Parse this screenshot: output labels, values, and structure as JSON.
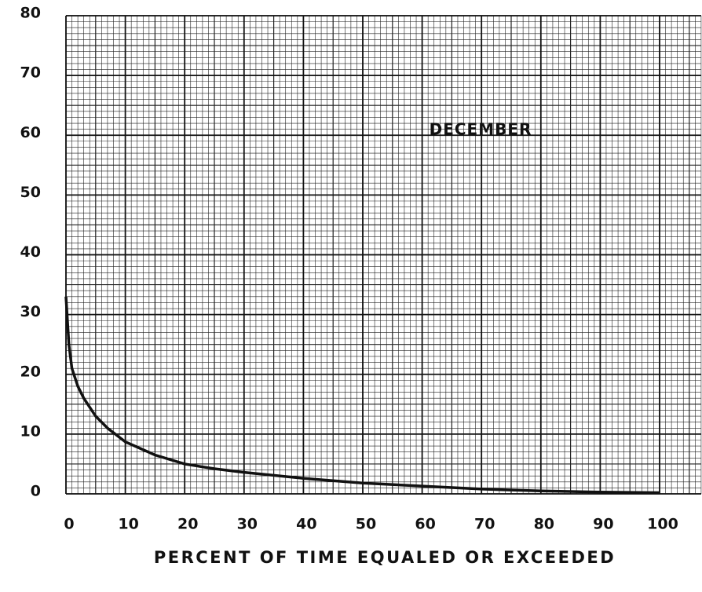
{
  "chart_data": {
    "type": "line",
    "annotation": "DECEMBER",
    "x_label": "PERCENT OF TIME EQUALED OR EXCEEDED",
    "series": [
      {
        "color": "#111111",
        "x": [
          0,
          0.5,
          1,
          2,
          3,
          5,
          7,
          10,
          15,
          20,
          25,
          30,
          40,
          50,
          60,
          70,
          80,
          90,
          100
        ],
        "values": [
          33,
          25,
          21,
          18,
          16,
          13,
          11,
          8.7,
          6.5,
          5,
          4.2,
          3.6,
          2.6,
          1.8,
          1.3,
          0.8,
          0.5,
          0.3,
          0.2
        ]
      }
    ],
    "xlim": [
      0,
      107
    ],
    "xticks": [
      0,
      10,
      20,
      30,
      40,
      50,
      60,
      70,
      80,
      90,
      100
    ],
    "ylim": [
      0,
      80
    ],
    "yticks": [
      0,
      10,
      20,
      30,
      40,
      50,
      60,
      70,
      80
    ],
    "grid": true
  }
}
